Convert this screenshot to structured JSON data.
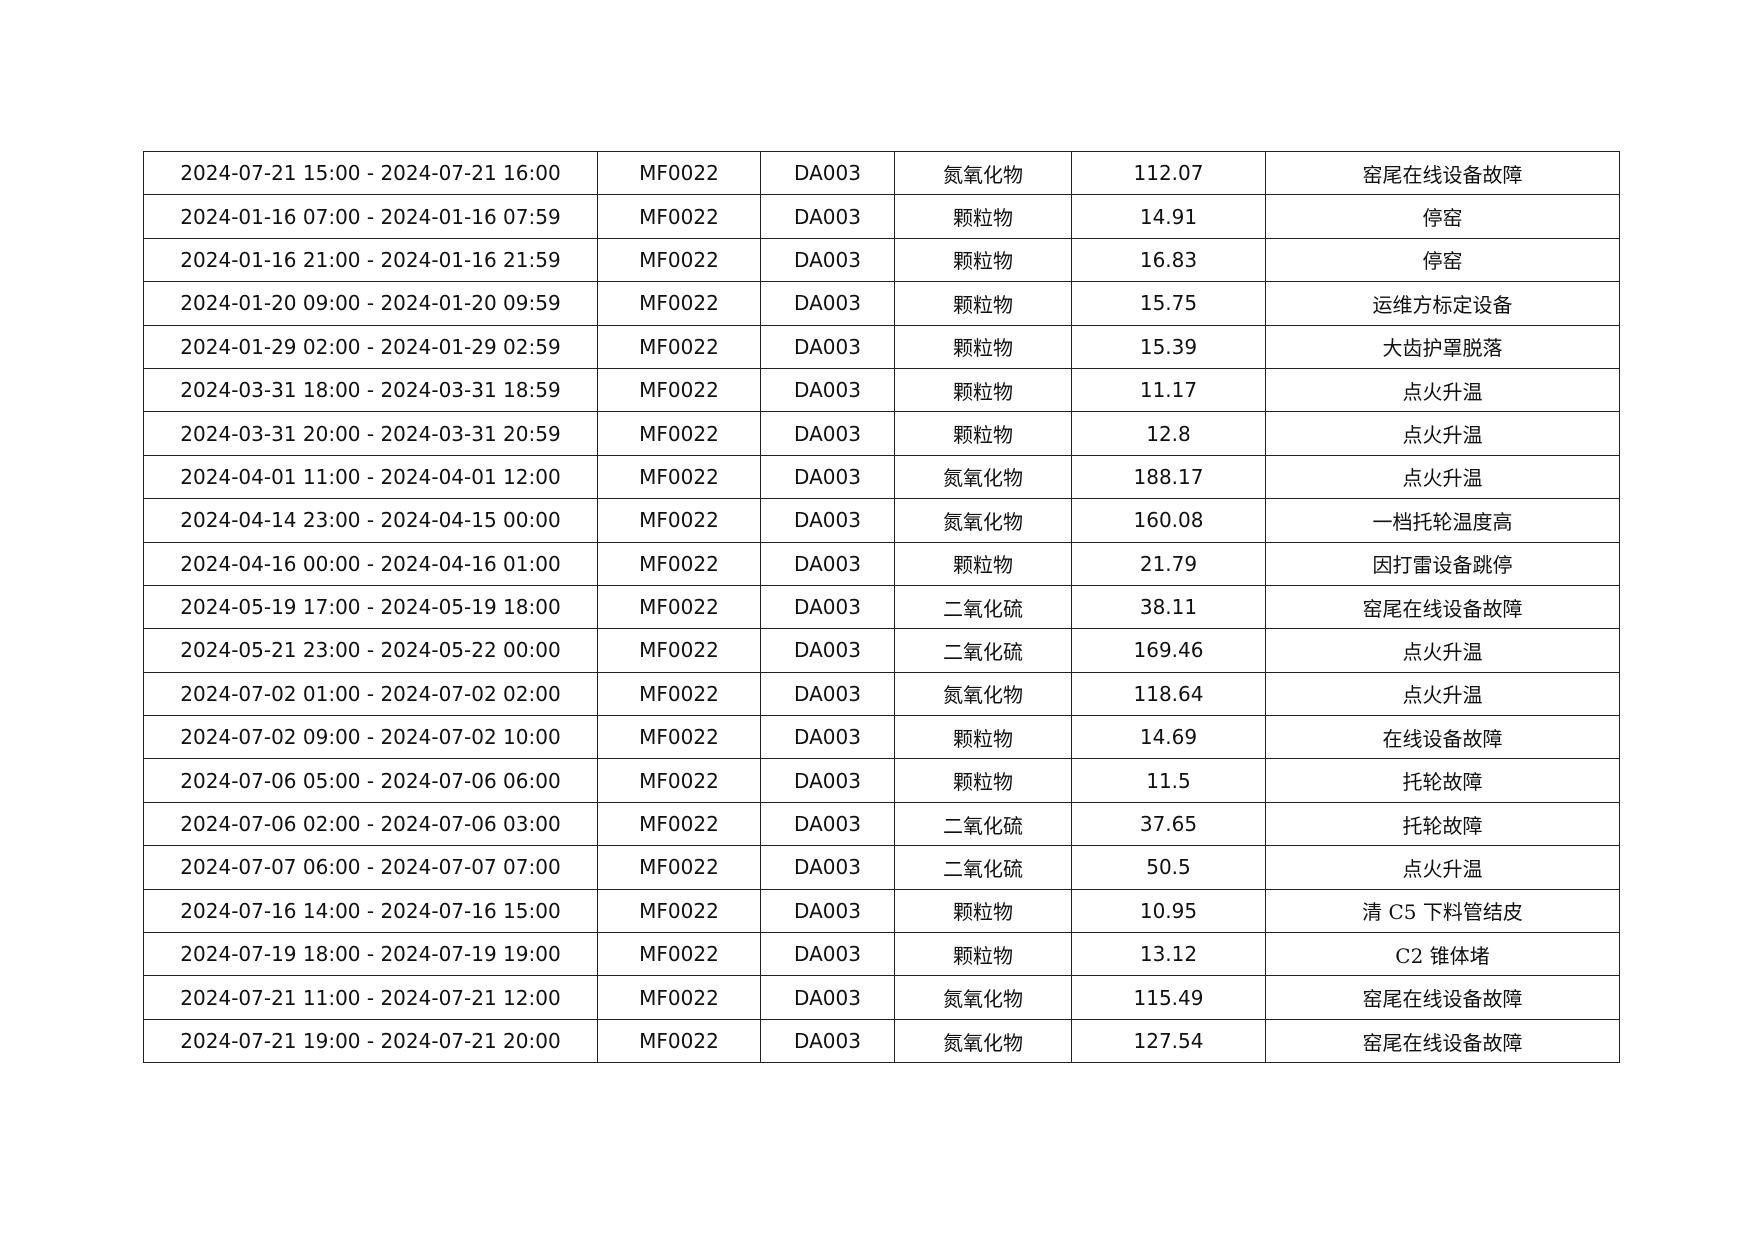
{
  "table": {
    "rows": [
      {
        "period": "2024-07-21 15:00 - 2024-07-21 16:00",
        "company": "MF0022",
        "outlet": "DA003",
        "pollutant": "氮氧化物",
        "value": "112.07",
        "reason": "窑尾在线设备故障"
      },
      {
        "period": "2024-01-16 07:00 - 2024-01-16 07:59",
        "company": "MF0022",
        "outlet": "DA003",
        "pollutant": "颗粒物",
        "value": "14.91",
        "reason": "停窑"
      },
      {
        "period": "2024-01-16 21:00 - 2024-01-16 21:59",
        "company": "MF0022",
        "outlet": "DA003",
        "pollutant": "颗粒物",
        "value": "16.83",
        "reason": "停窑"
      },
      {
        "period": "2024-01-20 09:00 - 2024-01-20 09:59",
        "company": "MF0022",
        "outlet": "DA003",
        "pollutant": "颗粒物",
        "value": "15.75",
        "reason": "运维方标定设备"
      },
      {
        "period": "2024-01-29 02:00 - 2024-01-29 02:59",
        "company": "MF0022",
        "outlet": "DA003",
        "pollutant": "颗粒物",
        "value": "15.39",
        "reason": "大齿护罩脱落"
      },
      {
        "period": "2024-03-31 18:00 - 2024-03-31 18:59",
        "company": "MF0022",
        "outlet": "DA003",
        "pollutant": "颗粒物",
        "value": "11.17",
        "reason": "点火升温"
      },
      {
        "period": "2024-03-31 20:00 - 2024-03-31 20:59",
        "company": "MF0022",
        "outlet": "DA003",
        "pollutant": "颗粒物",
        "value": "12.8",
        "reason": "点火升温"
      },
      {
        "period": "2024-04-01 11:00 - 2024-04-01 12:00",
        "company": "MF0022",
        "outlet": "DA003",
        "pollutant": "氮氧化物",
        "value": "188.17",
        "reason": "点火升温"
      },
      {
        "period": "2024-04-14 23:00 - 2024-04-15 00:00",
        "company": "MF0022",
        "outlet": "DA003",
        "pollutant": "氮氧化物",
        "value": "160.08",
        "reason": "一档托轮温度高"
      },
      {
        "period": "2024-04-16 00:00 - 2024-04-16 01:00",
        "company": "MF0022",
        "outlet": "DA003",
        "pollutant": "颗粒物",
        "value": "21.79",
        "reason": "因打雷设备跳停"
      },
      {
        "period": "2024-05-19 17:00 - 2024-05-19 18:00",
        "company": "MF0022",
        "outlet": "DA003",
        "pollutant": "二氧化硫",
        "value": "38.11",
        "reason": "窑尾在线设备故障"
      },
      {
        "period": "2024-05-21 23:00 - 2024-05-22 00:00",
        "company": "MF0022",
        "outlet": "DA003",
        "pollutant": "二氧化硫",
        "value": "169.46",
        "reason": "点火升温"
      },
      {
        "period": "2024-07-02 01:00 - 2024-07-02 02:00",
        "company": "MF0022",
        "outlet": "DA003",
        "pollutant": "氮氧化物",
        "value": "118.64",
        "reason": "点火升温"
      },
      {
        "period": "2024-07-02 09:00 - 2024-07-02 10:00",
        "company": "MF0022",
        "outlet": "DA003",
        "pollutant": "颗粒物",
        "value": "14.69",
        "reason": "在线设备故障"
      },
      {
        "period": "2024-07-06 05:00 - 2024-07-06 06:00",
        "company": "MF0022",
        "outlet": "DA003",
        "pollutant": "颗粒物",
        "value": "11.5",
        "reason": "托轮故障"
      },
      {
        "period": "2024-07-06 02:00 - 2024-07-06 03:00",
        "company": "MF0022",
        "outlet": "DA003",
        "pollutant": "二氧化硫",
        "value": "37.65",
        "reason": "托轮故障"
      },
      {
        "period": "2024-07-07 06:00 - 2024-07-07 07:00",
        "company": "MF0022",
        "outlet": "DA003",
        "pollutant": "二氧化硫",
        "value": "50.5",
        "reason": "点火升温"
      },
      {
        "period": "2024-07-16 14:00 - 2024-07-16 15:00",
        "company": "MF0022",
        "outlet": "DA003",
        "pollutant": "颗粒物",
        "value": "10.95",
        "reason": "清 C5 下料管结皮"
      },
      {
        "period": "2024-07-19 18:00 - 2024-07-19 19:00",
        "company": "MF0022",
        "outlet": "DA003",
        "pollutant": "颗粒物",
        "value": "13.12",
        "reason": "C2 锥体堵"
      },
      {
        "period": "2024-07-21 11:00 - 2024-07-21 12:00",
        "company": "MF0022",
        "outlet": "DA003",
        "pollutant": "氮氧化物",
        "value": "115.49",
        "reason": "窑尾在线设备故障"
      },
      {
        "period": "2024-07-21 19:00 - 2024-07-21 20:00",
        "company": "MF0022",
        "outlet": "DA003",
        "pollutant": "氮氧化物",
        "value": "127.54",
        "reason": "窑尾在线设备故障"
      }
    ]
  }
}
